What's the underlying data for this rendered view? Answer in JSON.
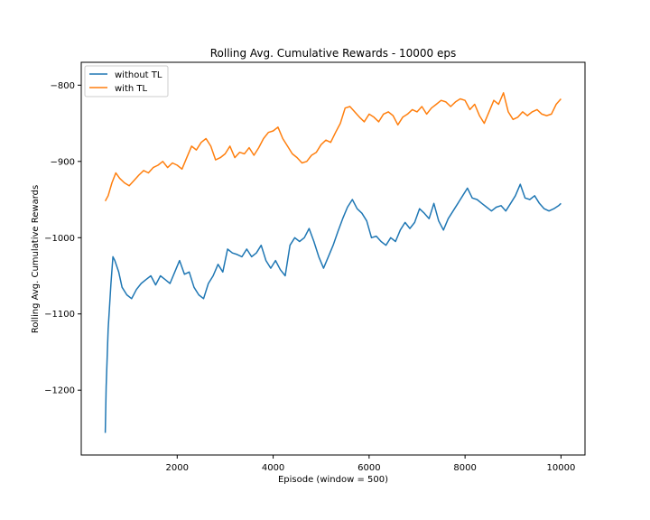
{
  "chart_data": {
    "type": "line",
    "title": "Rolling Avg. Cumulative Rewards - 10000 eps",
    "xlabel": "Episode (window = 500)",
    "ylabel": "Rolling Avg. Cumulative Rewards",
    "xlim": [
      0,
      10500
    ],
    "ylim": [
      -1285,
      -770
    ],
    "xticks": [
      2000,
      4000,
      6000,
      8000,
      10000
    ],
    "yticks": [
      -1200,
      -1100,
      -1000,
      -900,
      -800
    ],
    "grid": false,
    "legend_position": "upper-left",
    "series": [
      {
        "name": "without TL",
        "color": "#1f77b4",
        "points": [
          [
            500,
            -1256
          ],
          [
            520,
            -1195
          ],
          [
            560,
            -1120
          ],
          [
            620,
            -1060
          ],
          [
            660,
            -1025
          ],
          [
            700,
            -1030
          ],
          [
            780,
            -1045
          ],
          [
            850,
            -1065
          ],
          [
            950,
            -1075
          ],
          [
            1050,
            -1080
          ],
          [
            1150,
            -1068
          ],
          [
            1250,
            -1060
          ],
          [
            1350,
            -1055
          ],
          [
            1450,
            -1050
          ],
          [
            1550,
            -1062
          ],
          [
            1650,
            -1050
          ],
          [
            1750,
            -1055
          ],
          [
            1850,
            -1060
          ],
          [
            1950,
            -1045
          ],
          [
            2050,
            -1030
          ],
          [
            2150,
            -1048
          ],
          [
            2250,
            -1045
          ],
          [
            2350,
            -1065
          ],
          [
            2450,
            -1075
          ],
          [
            2550,
            -1080
          ],
          [
            2650,
            -1060
          ],
          [
            2750,
            -1050
          ],
          [
            2850,
            -1035
          ],
          [
            2950,
            -1045
          ],
          [
            3050,
            -1015
          ],
          [
            3150,
            -1020
          ],
          [
            3250,
            -1022
          ],
          [
            3350,
            -1025
          ],
          [
            3450,
            -1015
          ],
          [
            3550,
            -1025
          ],
          [
            3650,
            -1020
          ],
          [
            3750,
            -1010
          ],
          [
            3850,
            -1030
          ],
          [
            3950,
            -1040
          ],
          [
            4050,
            -1030
          ],
          [
            4150,
            -1042
          ],
          [
            4250,
            -1050
          ],
          [
            4350,
            -1010
          ],
          [
            4450,
            -1000
          ],
          [
            4550,
            -1005
          ],
          [
            4650,
            -1000
          ],
          [
            4750,
            -988
          ],
          [
            4850,
            -1005
          ],
          [
            4950,
            -1025
          ],
          [
            5050,
            -1040
          ],
          [
            5150,
            -1025
          ],
          [
            5250,
            -1010
          ],
          [
            5350,
            -992
          ],
          [
            5450,
            -975
          ],
          [
            5550,
            -960
          ],
          [
            5650,
            -950
          ],
          [
            5750,
            -962
          ],
          [
            5850,
            -968
          ],
          [
            5950,
            -978
          ],
          [
            6050,
            -1000
          ],
          [
            6150,
            -998
          ],
          [
            6250,
            -1005
          ],
          [
            6350,
            -1010
          ],
          [
            6450,
            -1000
          ],
          [
            6550,
            -1005
          ],
          [
            6650,
            -990
          ],
          [
            6750,
            -980
          ],
          [
            6850,
            -988
          ],
          [
            6950,
            -980
          ],
          [
            7050,
            -962
          ],
          [
            7150,
            -968
          ],
          [
            7250,
            -975
          ],
          [
            7350,
            -955
          ],
          [
            7450,
            -978
          ],
          [
            7550,
            -990
          ],
          [
            7650,
            -975
          ],
          [
            7750,
            -965
          ],
          [
            7850,
            -955
          ],
          [
            7950,
            -945
          ],
          [
            8050,
            -935
          ],
          [
            8150,
            -948
          ],
          [
            8250,
            -950
          ],
          [
            8350,
            -955
          ],
          [
            8450,
            -960
          ],
          [
            8550,
            -965
          ],
          [
            8650,
            -960
          ],
          [
            8750,
            -958
          ],
          [
            8850,
            -965
          ],
          [
            8950,
            -955
          ],
          [
            9050,
            -945
          ],
          [
            9150,
            -930
          ],
          [
            9250,
            -948
          ],
          [
            9350,
            -950
          ],
          [
            9450,
            -945
          ],
          [
            9550,
            -955
          ],
          [
            9650,
            -962
          ],
          [
            9750,
            -965
          ],
          [
            9850,
            -962
          ],
          [
            9950,
            -958
          ],
          [
            10000,
            -955
          ]
        ]
      },
      {
        "name": "with TL",
        "color": "#ff7f0e",
        "points": [
          [
            500,
            -952
          ],
          [
            560,
            -945
          ],
          [
            640,
            -928
          ],
          [
            720,
            -915
          ],
          [
            800,
            -922
          ],
          [
            900,
            -928
          ],
          [
            1000,
            -932
          ],
          [
            1100,
            -925
          ],
          [
            1200,
            -918
          ],
          [
            1300,
            -912
          ],
          [
            1400,
            -915
          ],
          [
            1500,
            -908
          ],
          [
            1600,
            -905
          ],
          [
            1700,
            -900
          ],
          [
            1800,
            -908
          ],
          [
            1900,
            -902
          ],
          [
            2000,
            -905
          ],
          [
            2100,
            -910
          ],
          [
            2200,
            -895
          ],
          [
            2300,
            -880
          ],
          [
            2400,
            -885
          ],
          [
            2500,
            -875
          ],
          [
            2600,
            -870
          ],
          [
            2700,
            -880
          ],
          [
            2800,
            -898
          ],
          [
            2900,
            -895
          ],
          [
            3000,
            -890
          ],
          [
            3100,
            -880
          ],
          [
            3200,
            -895
          ],
          [
            3300,
            -888
          ],
          [
            3400,
            -890
          ],
          [
            3500,
            -882
          ],
          [
            3600,
            -892
          ],
          [
            3700,
            -882
          ],
          [
            3800,
            -870
          ],
          [
            3900,
            -862
          ],
          [
            4000,
            -860
          ],
          [
            4100,
            -855
          ],
          [
            4200,
            -870
          ],
          [
            4300,
            -880
          ],
          [
            4400,
            -890
          ],
          [
            4500,
            -895
          ],
          [
            4600,
            -902
          ],
          [
            4700,
            -900
          ],
          [
            4800,
            -892
          ],
          [
            4900,
            -888
          ],
          [
            5000,
            -878
          ],
          [
            5100,
            -872
          ],
          [
            5200,
            -875
          ],
          [
            5300,
            -862
          ],
          [
            5400,
            -850
          ],
          [
            5500,
            -830
          ],
          [
            5600,
            -828
          ],
          [
            5700,
            -835
          ],
          [
            5800,
            -842
          ],
          [
            5900,
            -848
          ],
          [
            6000,
            -838
          ],
          [
            6100,
            -842
          ],
          [
            6200,
            -848
          ],
          [
            6300,
            -838
          ],
          [
            6400,
            -835
          ],
          [
            6500,
            -840
          ],
          [
            6600,
            -852
          ],
          [
            6700,
            -842
          ],
          [
            6800,
            -838
          ],
          [
            6900,
            -832
          ],
          [
            7000,
            -835
          ],
          [
            7100,
            -828
          ],
          [
            7200,
            -838
          ],
          [
            7300,
            -830
          ],
          [
            7400,
            -825
          ],
          [
            7500,
            -820
          ],
          [
            7600,
            -822
          ],
          [
            7700,
            -828
          ],
          [
            7800,
            -822
          ],
          [
            7900,
            -818
          ],
          [
            8000,
            -820
          ],
          [
            8100,
            -832
          ],
          [
            8200,
            -825
          ],
          [
            8300,
            -840
          ],
          [
            8400,
            -850
          ],
          [
            8500,
            -835
          ],
          [
            8600,
            -820
          ],
          [
            8700,
            -825
          ],
          [
            8800,
            -810
          ],
          [
            8900,
            -835
          ],
          [
            9000,
            -845
          ],
          [
            9100,
            -842
          ],
          [
            9200,
            -835
          ],
          [
            9300,
            -840
          ],
          [
            9400,
            -835
          ],
          [
            9500,
            -832
          ],
          [
            9600,
            -838
          ],
          [
            9700,
            -840
          ],
          [
            9800,
            -838
          ],
          [
            9900,
            -825
          ],
          [
            10000,
            -818
          ]
        ]
      }
    ]
  }
}
